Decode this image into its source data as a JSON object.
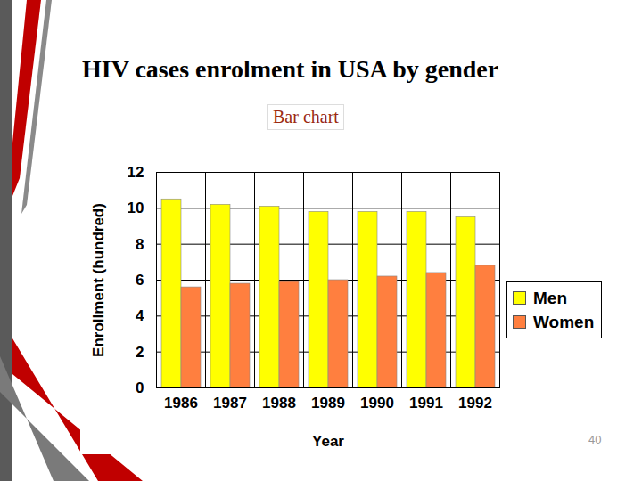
{
  "chart_data": {
    "type": "bar",
    "title": "HIV cases enrolment in USA by gender",
    "subtitle": "Bar chart",
    "x_label": "Year",
    "y_label": "Enrollment (hundred)",
    "categories": [
      "1986",
      "1987",
      "1988",
      "1989",
      "1990",
      "1991",
      "1992"
    ],
    "series": [
      {
        "name": "Men",
        "color": "#ffff00",
        "values": [
          10.5,
          10.2,
          10.1,
          9.8,
          9.8,
          9.8,
          9.5
        ]
      },
      {
        "name": "Women",
        "color": "#ff7f3f",
        "values": [
          5.6,
          5.8,
          5.9,
          6.0,
          6.2,
          6.4,
          6.8
        ]
      }
    ],
    "ylim": [
      0,
      12
    ],
    "yticks": [
      0,
      2,
      4,
      6,
      8,
      10,
      12
    ],
    "grid": true,
    "legend": "right"
  },
  "page_number": 40
}
